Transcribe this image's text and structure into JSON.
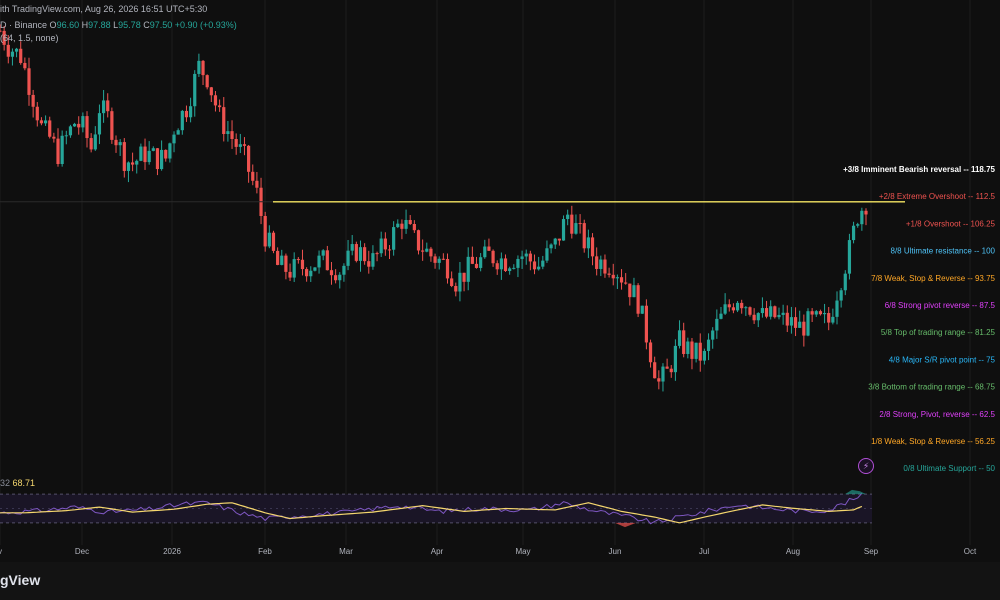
{
  "header": {
    "title_fragment": "ith TradingView.com, Aug 26, 2026 16:51 UTC+5:30",
    "symbol_fragment": "D · Binance",
    "ohlc": {
      "o_label": "O",
      "o": "96.60",
      "h_label": "H",
      "h": "97.88",
      "l_label": "L",
      "l": "95.78",
      "c_label": "C",
      "c": "97.50",
      "change": "+0.90 (+0.93%)"
    },
    "indicator_params": "(64, 1.5, none)"
  },
  "rsi_header": {
    "prefix": "32",
    "value": "68.71"
  },
  "footer": {
    "brand": "gView"
  },
  "lightning_icon": "lightning-icon",
  "colors": {
    "background": "#0f0f0f",
    "up": "#26a69a",
    "down": "#ef5350",
    "resistance_line": "#f5e663",
    "rsi_line": "#7e57c2",
    "rsi_ma": "#f5d76e"
  },
  "chart_data": {
    "type": "candlestick",
    "x_axis": {
      "ticks": [
        {
          "label": "v",
          "pos": 0
        },
        {
          "label": "Dec",
          "pos": 1
        },
        {
          "label": "2026",
          "pos": 2
        },
        {
          "label": "Feb",
          "pos": 3
        },
        {
          "label": "Mar",
          "pos": 4
        },
        {
          "label": "Apr",
          "pos": 5
        },
        {
          "label": "May",
          "pos": 6
        },
        {
          "label": "Jun",
          "pos": 7
        },
        {
          "label": "Jul",
          "pos": 8
        },
        {
          "label": "Aug",
          "pos": 9
        },
        {
          "label": "Sep",
          "pos": 10
        },
        {
          "label": "Oct",
          "pos": 11
        }
      ]
    },
    "resistance_level": 97.5,
    "murrey_math_levels": [
      {
        "label": "+3/8 Imminent Bearish reversal --",
        "value": "118.75",
        "color": "#ffffff",
        "price": 118.75
      },
      {
        "label": "+2/8 Extreme Overshoot --",
        "value": "112.5",
        "color": "#ef5350",
        "price": 112.5
      },
      {
        "label": "+1/8 Overshoot --",
        "value": "106.25",
        "color": "#ef5350",
        "price": 106.25
      },
      {
        "label": "8/8 Ultimate resistance --",
        "value": "100",
        "color": "#4fc3f7",
        "price": 100
      },
      {
        "label": "7/8 Weak, Stop & Reverse --",
        "value": "93.75",
        "color": "#ffa726",
        "price": 93.75
      },
      {
        "label": "6/8 Strong pivot reverse --",
        "value": "87.5",
        "color": "#e040fb",
        "price": 87.5
      },
      {
        "label": "5/8 Top of trading range --",
        "value": "81.25",
        "color": "#66bb6a",
        "price": 81.25
      },
      {
        "label": "4/8 Major S/R pivot point --",
        "value": "75",
        "color": "#29b6f6",
        "price": 75
      },
      {
        "label": "3/8 Bottom of trading range --",
        "value": "68.75",
        "color": "#66bb6a",
        "price": 68.75
      },
      {
        "label": "2/8 Strong, Pivot, reverse --",
        "value": "62.5",
        "color": "#e040fb",
        "price": 62.5
      },
      {
        "label": "1/8 Weak, Stop & Reverse --",
        "value": "56.25",
        "color": "#ffa726",
        "price": 56.25
      },
      {
        "label": "0/8 Ultimate Support --",
        "value": "50",
        "color": "#26a69a",
        "price": 50
      }
    ],
    "price_path": [
      {
        "t": 0.0,
        "p": 131
      },
      {
        "t": 1.0,
        "p": 128
      },
      {
        "t": 2.5,
        "p": 126
      },
      {
        "t": 4.0,
        "p": 118
      },
      {
        "t": 5.0,
        "p": 112
      },
      {
        "t": 6.0,
        "p": 110
      },
      {
        "t": 7.0,
        "p": 107
      },
      {
        "t": 8.0,
        "p": 110
      },
      {
        "t": 9.0,
        "p": 113
      },
      {
        "t": 10.0,
        "p": 112
      },
      {
        "t": 11.0,
        "p": 108
      },
      {
        "t": 12.0,
        "p": 116
      },
      {
        "t": 13.0,
        "p": 114
      },
      {
        "t": 14.0,
        "p": 110
      },
      {
        "t": 15.0,
        "p": 106
      },
      {
        "t": 16.0,
        "p": 105
      },
      {
        "t": 17.5,
        "p": 107
      },
      {
        "t": 19.0,
        "p": 106
      },
      {
        "t": 20.0,
        "p": 106
      },
      {
        "t": 21.0,
        "p": 112
      },
      {
        "t": 22.5,
        "p": 116
      },
      {
        "t": 24.0,
        "p": 124
      },
      {
        "t": 25.0,
        "p": 122
      },
      {
        "t": 26.5,
        "p": 114
      },
      {
        "t": 28.0,
        "p": 110
      },
      {
        "t": 29.5,
        "p": 106
      },
      {
        "t": 31.0,
        "p": 99
      },
      {
        "t": 32.0,
        "p": 91
      },
      {
        "t": 33.5,
        "p": 85
      },
      {
        "t": 35.0,
        "p": 84
      },
      {
        "t": 37.0,
        "p": 85
      },
      {
        "t": 39.0,
        "p": 86
      },
      {
        "t": 41.0,
        "p": 84
      },
      {
        "t": 43.0,
        "p": 88
      },
      {
        "t": 45.0,
        "p": 86
      },
      {
        "t": 47.0,
        "p": 90
      },
      {
        "t": 48.5,
        "p": 94
      },
      {
        "t": 50.0,
        "p": 90
      },
      {
        "t": 52.0,
        "p": 87
      },
      {
        "t": 54.0,
        "p": 85
      },
      {
        "t": 55.0,
        "p": 82
      },
      {
        "t": 57.0,
        "p": 85
      },
      {
        "t": 59.0,
        "p": 87
      },
      {
        "t": 61.0,
        "p": 86
      },
      {
        "t": 63.0,
        "p": 87
      },
      {
        "t": 65.0,
        "p": 85
      },
      {
        "t": 67.0,
        "p": 89
      },
      {
        "t": 68.5,
        "p": 95
      },
      {
        "t": 70.0,
        "p": 91
      },
      {
        "t": 72.0,
        "p": 86
      },
      {
        "t": 74.0,
        "p": 85
      },
      {
        "t": 75.5,
        "p": 82
      },
      {
        "t": 77.0,
        "p": 78
      },
      {
        "t": 78.5,
        "p": 68
      },
      {
        "t": 79.5,
        "p": 62
      },
      {
        "t": 80.5,
        "p": 64
      },
      {
        "t": 82.0,
        "p": 70
      },
      {
        "t": 83.5,
        "p": 68
      },
      {
        "t": 85.0,
        "p": 67
      },
      {
        "t": 86.0,
        "p": 72
      },
      {
        "t": 87.5,
        "p": 76
      },
      {
        "t": 89.0,
        "p": 79
      },
      {
        "t": 90.5,
        "p": 77
      },
      {
        "t": 92.0,
        "p": 75
      },
      {
        "t": 93.5,
        "p": 75
      },
      {
        "t": 95.0,
        "p": 74
      },
      {
        "t": 96.5,
        "p": 73
      },
      {
        "t": 98.0,
        "p": 74
      },
      {
        "t": 99.0,
        "p": 74
      },
      {
        "t": 100.0,
        "p": 74
      },
      {
        "t": 101.0,
        "p": 80
      },
      {
        "t": 102.5,
        "p": 88
      },
      {
        "t": 103.5,
        "p": 95
      },
      {
        "t": 104.5,
        "p": 97.5
      }
    ],
    "rsi": {
      "levels": [
        70,
        30
      ],
      "path": [
        {
          "t": 0,
          "v": 44
        },
        {
          "t": 5,
          "v": 47
        },
        {
          "t": 9,
          "v": 52
        },
        {
          "t": 13,
          "v": 45
        },
        {
          "t": 18,
          "v": 49
        },
        {
          "t": 22,
          "v": 56
        },
        {
          "t": 25,
          "v": 58
        },
        {
          "t": 29,
          "v": 44
        },
        {
          "t": 32,
          "v": 36
        },
        {
          "t": 36,
          "v": 40
        },
        {
          "t": 42,
          "v": 45
        },
        {
          "t": 48,
          "v": 54
        },
        {
          "t": 53,
          "v": 46
        },
        {
          "t": 58,
          "v": 50
        },
        {
          "t": 64,
          "v": 48
        },
        {
          "t": 68,
          "v": 58
        },
        {
          "t": 72,
          "v": 46
        },
        {
          "t": 76,
          "v": 38
        },
        {
          "t": 79,
          "v": 30
        },
        {
          "t": 82,
          "v": 38
        },
        {
          "t": 86,
          "v": 48
        },
        {
          "t": 89,
          "v": 55
        },
        {
          "t": 93,
          "v": 50
        },
        {
          "t": 97,
          "v": 46
        },
        {
          "t": 100,
          "v": 48
        },
        {
          "t": 102,
          "v": 58
        },
        {
          "t": 104,
          "v": 68
        }
      ]
    }
  }
}
